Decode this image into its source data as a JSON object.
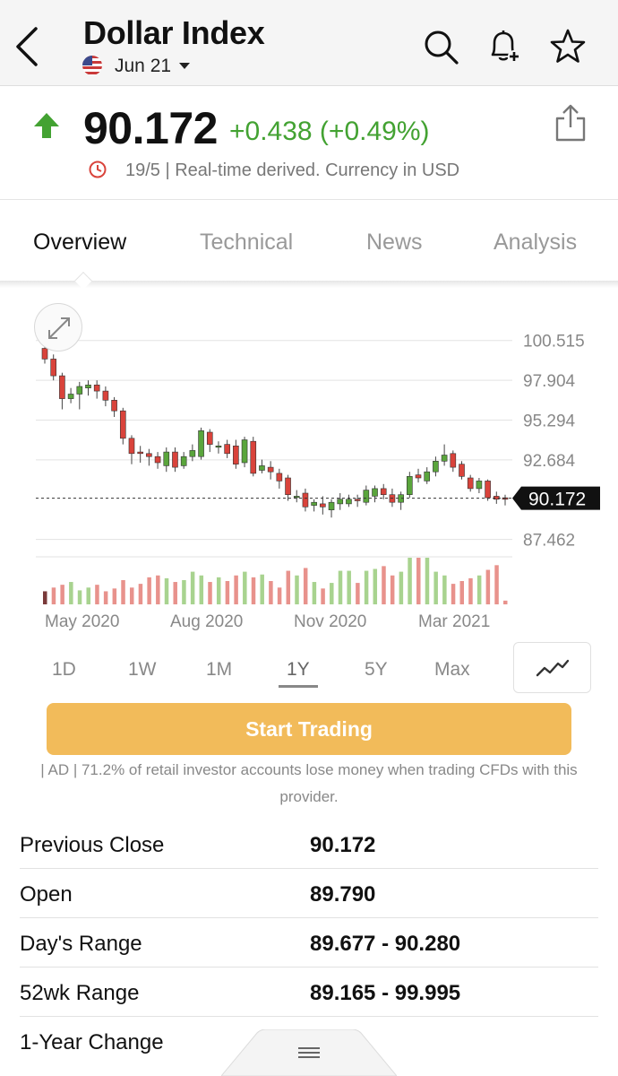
{
  "header": {
    "title": "Dollar Index",
    "contract": "Jun 21"
  },
  "quote": {
    "price": "90.172",
    "change": "+0.438 (+0.49%)",
    "info": "19/5 | Real-time derived. Currency in USD",
    "direction_color": "#43a232"
  },
  "tabs": [
    {
      "label": "Overview"
    },
    {
      "label": "Technical"
    },
    {
      "label": "News"
    },
    {
      "label": "Analysis"
    }
  ],
  "chart": {
    "y_ticks": [
      "100.515",
      "97.904",
      "95.294",
      "92.684",
      "87.462"
    ],
    "x_ticks": [
      "May 2020",
      "Aug 2020",
      "Nov 2020",
      "Mar 2021"
    ],
    "last_price_label": "90.172"
  },
  "chart_data": {
    "type": "candlestick",
    "ylim": [
      86.5,
      101.5
    ],
    "y_ticks": [
      100.515,
      97.904,
      95.294,
      92.684,
      87.462
    ],
    "last_price": 90.172,
    "up_color": "#5aa53c",
    "down_color": "#d9433b",
    "candles": [
      {
        "o": 100.0,
        "c": 99.3,
        "h": 100.6,
        "l": 99.0
      },
      {
        "o": 99.3,
        "c": 98.2,
        "h": 99.6,
        "l": 97.9
      },
      {
        "o": 98.2,
        "c": 96.7,
        "h": 98.4,
        "l": 96.0
      },
      {
        "o": 96.7,
        "c": 97.0,
        "h": 97.4,
        "l": 96.4
      },
      {
        "o": 97.0,
        "c": 97.5,
        "h": 97.8,
        "l": 96.0
      },
      {
        "o": 97.4,
        "c": 97.6,
        "h": 97.9,
        "l": 96.9
      },
      {
        "o": 97.6,
        "c": 97.2,
        "h": 97.9,
        "l": 96.7
      },
      {
        "o": 97.2,
        "c": 96.6,
        "h": 97.5,
        "l": 96.2
      },
      {
        "o": 96.6,
        "c": 95.9,
        "h": 96.8,
        "l": 95.5
      },
      {
        "o": 95.9,
        "c": 94.1,
        "h": 96.1,
        "l": 93.7
      },
      {
        "o": 94.1,
        "c": 93.1,
        "h": 94.3,
        "l": 92.4
      },
      {
        "o": 93.2,
        "c": 93.1,
        "h": 93.6,
        "l": 92.5
      },
      {
        "o": 93.1,
        "c": 92.9,
        "h": 93.4,
        "l": 92.3
      },
      {
        "o": 92.9,
        "c": 92.5,
        "h": 93.2,
        "l": 92.1
      },
      {
        "o": 92.3,
        "c": 93.2,
        "h": 93.5,
        "l": 91.9
      },
      {
        "o": 93.2,
        "c": 92.2,
        "h": 93.5,
        "l": 91.9
      },
      {
        "o": 92.3,
        "c": 92.9,
        "h": 93.2,
        "l": 92.1
      },
      {
        "o": 92.9,
        "c": 93.3,
        "h": 93.7,
        "l": 92.6
      },
      {
        "o": 92.9,
        "c": 94.6,
        "h": 94.8,
        "l": 92.7
      },
      {
        "o": 94.5,
        "c": 93.7,
        "h": 94.7,
        "l": 93.2
      },
      {
        "o": 93.6,
        "c": 93.6,
        "h": 93.9,
        "l": 93.1
      },
      {
        "o": 93.7,
        "c": 93.1,
        "h": 94.0,
        "l": 92.8
      },
      {
        "o": 93.6,
        "c": 92.4,
        "h": 94.0,
        "l": 92.1
      },
      {
        "o": 92.5,
        "c": 94.0,
        "h": 94.2,
        "l": 92.2
      },
      {
        "o": 93.9,
        "c": 91.8,
        "h": 94.2,
        "l": 91.6
      },
      {
        "o": 92.0,
        "c": 92.3,
        "h": 92.7,
        "l": 91.8
      },
      {
        "o": 92.2,
        "c": 91.9,
        "h": 92.6,
        "l": 91.4
      },
      {
        "o": 91.8,
        "c": 91.3,
        "h": 92.1,
        "l": 90.8
      },
      {
        "o": 91.5,
        "c": 90.4,
        "h": 91.7,
        "l": 90.0
      },
      {
        "o": 90.3,
        "c": 90.3,
        "h": 90.7,
        "l": 89.9
      },
      {
        "o": 90.5,
        "c": 89.6,
        "h": 90.8,
        "l": 89.3
      },
      {
        "o": 89.7,
        "c": 89.9,
        "h": 90.1,
        "l": 89.3
      },
      {
        "o": 89.8,
        "c": 89.6,
        "h": 90.3,
        "l": 89.1
      },
      {
        "o": 89.4,
        "c": 89.9,
        "h": 90.1,
        "l": 88.9
      },
      {
        "o": 89.8,
        "c": 90.1,
        "h": 90.5,
        "l": 89.4
      },
      {
        "o": 89.8,
        "c": 90.1,
        "h": 90.4,
        "l": 89.6
      },
      {
        "o": 90.1,
        "c": 90.0,
        "h": 90.4,
        "l": 89.6
      },
      {
        "o": 89.9,
        "c": 90.7,
        "h": 91.0,
        "l": 89.7
      },
      {
        "o": 90.3,
        "c": 90.8,
        "h": 91.0,
        "l": 89.9
      },
      {
        "o": 90.8,
        "c": 90.4,
        "h": 91.1,
        "l": 90.1
      },
      {
        "o": 90.4,
        "c": 89.9,
        "h": 90.8,
        "l": 89.6
      },
      {
        "o": 89.9,
        "c": 90.4,
        "h": 90.6,
        "l": 89.4
      },
      {
        "o": 90.4,
        "c": 91.6,
        "h": 91.9,
        "l": 90.2
      },
      {
        "o": 91.7,
        "c": 91.5,
        "h": 92.1,
        "l": 91.2
      },
      {
        "o": 91.3,
        "c": 91.9,
        "h": 92.2,
        "l": 91.1
      },
      {
        "o": 91.9,
        "c": 92.6,
        "h": 92.9,
        "l": 91.6
      },
      {
        "o": 92.6,
        "c": 93.0,
        "h": 93.7,
        "l": 92.3
      },
      {
        "o": 93.1,
        "c": 92.2,
        "h": 93.3,
        "l": 91.9
      },
      {
        "o": 92.4,
        "c": 91.6,
        "h": 92.6,
        "l": 91.4
      },
      {
        "o": 91.5,
        "c": 90.8,
        "h": 91.7,
        "l": 90.6
      },
      {
        "o": 90.8,
        "c": 91.3,
        "h": 91.5,
        "l": 90.5
      },
      {
        "o": 91.3,
        "c": 90.2,
        "h": 91.4,
        "l": 90.0
      },
      {
        "o": 90.3,
        "c": 90.1,
        "h": 90.6,
        "l": 89.8
      },
      {
        "o": 90.2,
        "c": 90.1,
        "h": 90.4,
        "l": 89.7
      }
    ],
    "volume": [
      0.28,
      0.36,
      0.42,
      0.48,
      0.3,
      0.36,
      0.42,
      0.28,
      0.34,
      0.52,
      0.36,
      0.44,
      0.58,
      0.62,
      0.56,
      0.48,
      0.52,
      0.7,
      0.62,
      0.48,
      0.58,
      0.5,
      0.62,
      0.7,
      0.58,
      0.64,
      0.5,
      0.36,
      0.72,
      0.62,
      0.78,
      0.48,
      0.34,
      0.46,
      0.72,
      0.72,
      0.46,
      0.72,
      0.76,
      0.82,
      0.62,
      0.7,
      1.0,
      1.0,
      1.0,
      0.7,
      0.62,
      0.44,
      0.5,
      0.56,
      0.62,
      0.74,
      0.84,
      0.08
    ]
  },
  "ranges": [
    {
      "label": "1D"
    },
    {
      "label": "1W"
    },
    {
      "label": "1M"
    },
    {
      "label": "1Y"
    },
    {
      "label": "5Y"
    },
    {
      "label": "Max"
    }
  ],
  "trading": {
    "button_label": "Start Trading",
    "button_color": "#f2bb5a",
    "disclaimer": "| AD | 71.2% of retail investor accounts lose money when trading CFDs with this provider."
  },
  "stats": [
    {
      "label": "Previous Close",
      "value": "90.172"
    },
    {
      "label": "Open",
      "value": "89.790"
    },
    {
      "label": "Day's Range",
      "value": "89.677 - 90.280"
    },
    {
      "label": "52wk Range",
      "value": "89.165 - 99.995"
    },
    {
      "label": "1-Year Change",
      "value": ""
    }
  ]
}
